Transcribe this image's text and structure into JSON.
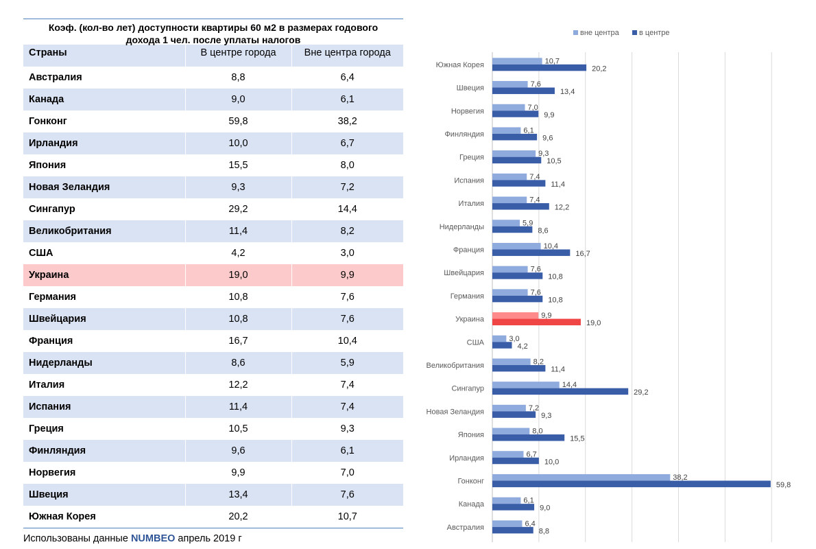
{
  "table": {
    "title_line1": "Коэф. (кол-во лет) доступности квартиры 60 м2 в размерах годового",
    "title_line2": "дохода 1 чел. после уплаты налогов",
    "headers": {
      "country": "Страны",
      "center": "В центре города",
      "outside": "Вне центра города"
    },
    "rows": [
      {
        "country": "Австралия",
        "center": "8,8",
        "outside": "6,4"
      },
      {
        "country": "Канада",
        "center": "9,0",
        "outside": "6,1"
      },
      {
        "country": "Гонконг",
        "center": "59,8",
        "outside": "38,2"
      },
      {
        "country": "Ирландия",
        "center": "10,0",
        "outside": "6,7"
      },
      {
        "country": "Япония",
        "center": "15,5",
        "outside": "8,0"
      },
      {
        "country": "Новая Зеландия",
        "center": "9,3",
        "outside": "7,2"
      },
      {
        "country": "Сингапур",
        "center": "29,2",
        "outside": "14,4"
      },
      {
        "country": "Великобритания",
        "center": "11,4",
        "outside": "8,2"
      },
      {
        "country": "США",
        "center": "4,2",
        "outside": "3,0"
      },
      {
        "country": "Украина",
        "center": "19,0",
        "outside": "9,9"
      },
      {
        "country": "Германия",
        "center": "10,8",
        "outside": "7,6"
      },
      {
        "country": "Швейцария",
        "center": "10,8",
        "outside": "7,6"
      },
      {
        "country": "Франция",
        "center": "16,7",
        "outside": "10,4"
      },
      {
        "country": "Нидерланды",
        "center": "8,6",
        "outside": "5,9"
      },
      {
        "country": "Италия",
        "center": "12,2",
        "outside": "7,4"
      },
      {
        "country": "Испания",
        "center": "11,4",
        "outside": "7,4"
      },
      {
        "country": "Греция",
        "center": "10,5",
        "outside": "9,3"
      },
      {
        "country": "Финляндия",
        "center": "9,6",
        "outside": "6,1"
      },
      {
        "country": "Норвегия",
        "center": "9,9",
        "outside": "7,0"
      },
      {
        "country": "Швеция",
        "center": "13,4",
        "outside": "7,6"
      },
      {
        "country": "Южная Корея",
        "center": "20,2",
        "outside": "10,7"
      }
    ],
    "highlight_country": "Украина",
    "source_prefix": "Использованы данные ",
    "source_brand": "NUMBEO",
    "source_suffix": " апрель 2019 г"
  },
  "colors": {
    "band": "#dae3f3",
    "highlight_row": "#fccaca",
    "bar_outside": "#8faadc",
    "bar_center": "#3a5da8",
    "bar_highlight_outside": "#ff8a8a",
    "bar_highlight_center": "#f04545"
  },
  "chart_data": {
    "type": "bar",
    "orientation": "horizontal",
    "categories": [
      "Южная Корея",
      "Швеция",
      "Норвегия",
      "Финляндия",
      "Греция",
      "Испания",
      "Италия",
      "Нидерланды",
      "Франция",
      "Швейцария",
      "Германия",
      "Украина",
      "США",
      "Великобритания",
      "Сингапур",
      "Новая Зеландия",
      "Япония",
      "Ирландия",
      "Гонконг",
      "Канада",
      "Австралия"
    ],
    "series": [
      {
        "name": "вне центра",
        "values": [
          10.7,
          7.6,
          7.0,
          6.1,
          9.3,
          7.4,
          7.4,
          5.9,
          10.4,
          7.6,
          7.6,
          9.9,
          3.0,
          8.2,
          14.4,
          7.2,
          8.0,
          6.7,
          38.2,
          6.1,
          6.4
        ],
        "labels": [
          "10,7",
          "7,6",
          "7,0",
          "6,1",
          "9,3",
          "7,4",
          "7,4",
          "5,9",
          "10,4",
          "7,6",
          "7,6",
          "9,9",
          "3,0",
          "8,2",
          "14,4",
          "7,2",
          "8,0",
          "6,7",
          "38,2",
          "6,1",
          "6,4"
        ]
      },
      {
        "name": "в центре",
        "values": [
          20.2,
          13.4,
          9.9,
          9.6,
          10.5,
          11.4,
          12.2,
          8.6,
          16.7,
          10.8,
          10.8,
          19.0,
          4.2,
          11.4,
          29.2,
          9.3,
          15.5,
          10.0,
          59.8,
          9.0,
          8.8
        ],
        "labels": [
          "20,2",
          "13,4",
          "9,9",
          "9,6",
          "10,5",
          "11,4",
          "12,2",
          "8,6",
          "16,7",
          "10,8",
          "10,8",
          "19,0",
          "4,2",
          "11,4",
          "29,2",
          "9,3",
          "15,5",
          "10,0",
          "59,8",
          "9,0",
          "8,8"
        ]
      }
    ],
    "highlight_category": "Украина",
    "xlim": [
      0,
      60
    ],
    "grid": true,
    "legend": "top"
  }
}
